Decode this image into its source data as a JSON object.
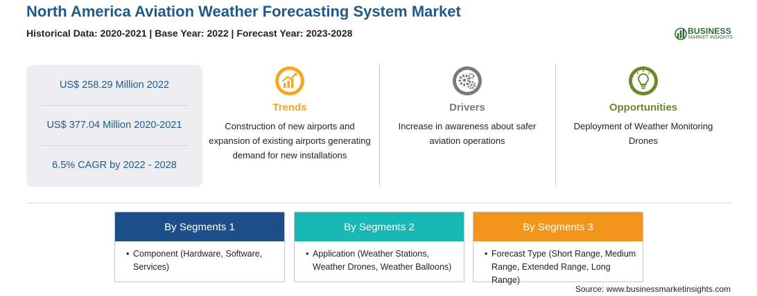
{
  "header": {
    "title": "North America Aviation Weather Forecasting System Market",
    "subtitle": "Historical Data: 2020-2021 | Base Year: 2022 | Forecast Year: 2023-2028"
  },
  "logo": {
    "name": "BUSINESS",
    "tagline": "MARKET INSIGHTS",
    "icon": "bar-chart-globe-icon",
    "color": "#2a6a2a"
  },
  "stats": [
    "US$ 258.29 Million 2022",
    "US$ 377.04 Million 2020-2021",
    "6.5% CAGR by 2022 - 2028"
  ],
  "columns": {
    "trends": {
      "heading": "Trends",
      "text": "Construction of new airports and expansion of existing airports generating demand for new installations",
      "icon": "trend-chart-icon",
      "color": "#f5a623"
    },
    "drivers": {
      "heading": "Drivers",
      "text": "Increase in awareness about safer aviation operations",
      "icon": "gears-icon",
      "color": "#7a7a7a"
    },
    "opportunities": {
      "heading": "Opportunities",
      "text": "Deployment of Weather Monitoring Drones",
      "icon": "lightbulb-icon",
      "color": "#6a8a2a"
    }
  },
  "segments": [
    {
      "title": "By Segments 1",
      "bullet": "•",
      "text": "Component (Hardware, Software, Services)",
      "color": "#1c4f8a"
    },
    {
      "title": "By Segments 2",
      "bullet": "•",
      "text": "Application (Weather Stations, Weather Drones, Weather Balloons)",
      "color": "#17b8b4"
    },
    {
      "title": "By Segments 3",
      "bullet": "•",
      "text": "Forecast Type (Short Range, Medium Range, Extended Range, Long Range)",
      "color": "#f3941c"
    }
  ],
  "source": "Source: www.businessmarketinsights.com"
}
